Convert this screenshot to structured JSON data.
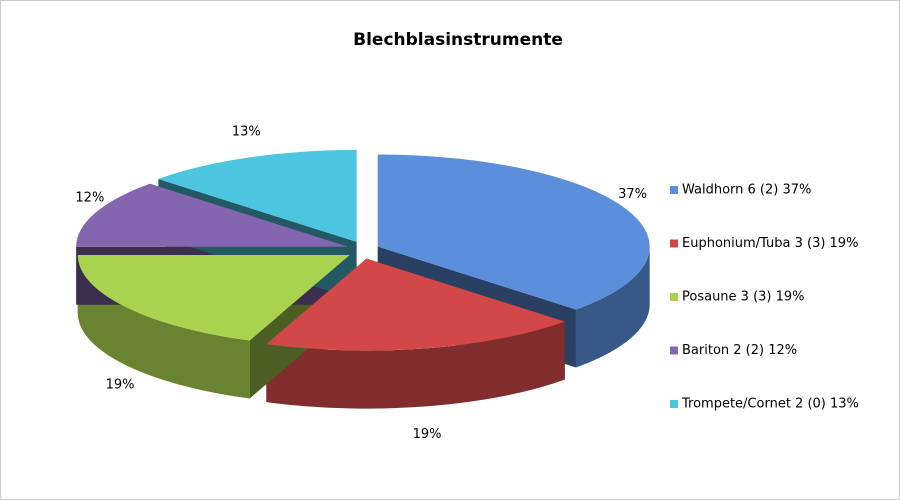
{
  "chart_data": {
    "type": "pie",
    "title": "Blechblasinstrumente",
    "categories": [
      "Waldhorn 6 (2) 37%",
      "Euphonium/Tuba 3 (3) 19%",
      "Posaune 3 (3) 19%",
      "Bariton 2 (2) 12%",
      "Trompete/Cornet 2 (0) 13%"
    ],
    "values": [
      37,
      19,
      19,
      12,
      13
    ],
    "value_labels": [
      "37%",
      "19%",
      "19%",
      "12%",
      "13%"
    ],
    "colors": [
      "#5b8fdc",
      "#d24848",
      "#a9d34e",
      "#8466b0",
      "#4cc6e0"
    ],
    "legend": "right"
  }
}
